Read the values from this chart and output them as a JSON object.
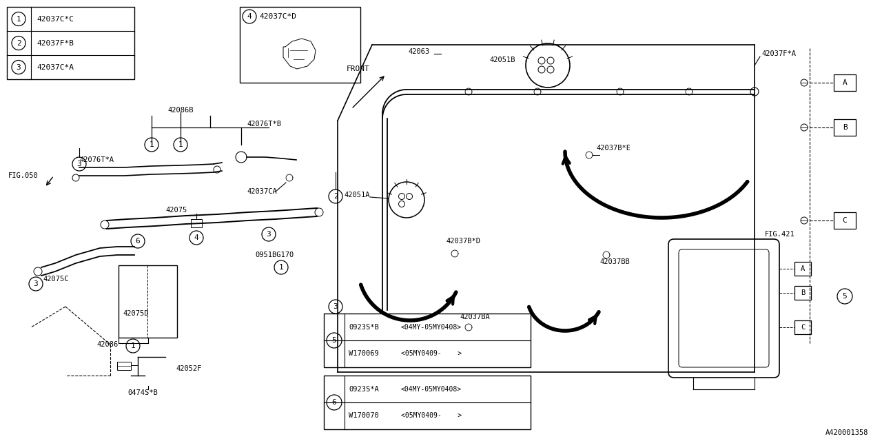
{
  "bg_color": "#ffffff",
  "line_color": "#000000",
  "diagram_id": "A420001358",
  "legend_items": [
    {
      "num": "1",
      "label": "42037C*C"
    },
    {
      "num": "2",
      "label": "42037F*B"
    },
    {
      "num": "3",
      "label": "42037C*A"
    }
  ],
  "variant_boxes": [
    {
      "num": "5",
      "line1": "0923S*B",
      "line1r": "<04MY-05MY0408>",
      "line2": "W170069",
      "line2r": "<05MY0409-    >"
    },
    {
      "num": "6",
      "line1": "0923S*A",
      "line1r": "<04MY-05MY0408>",
      "line2": "W170070",
      "line2r": "<05MY0409-    >"
    }
  ]
}
